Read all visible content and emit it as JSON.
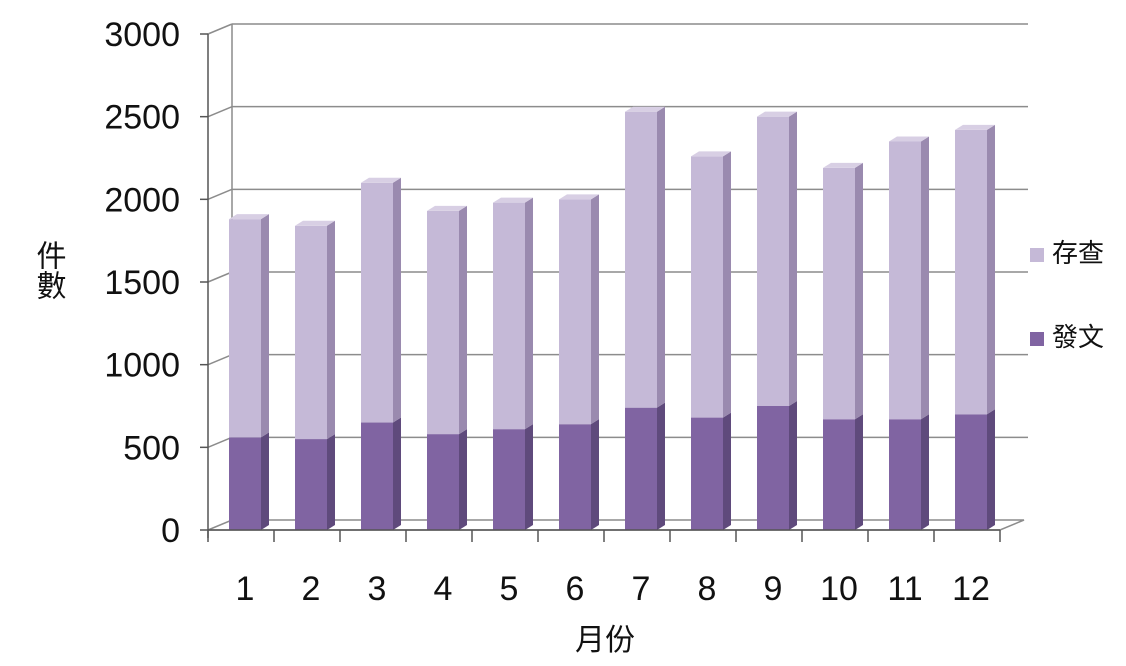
{
  "chart_data": {
    "type": "bar",
    "stacked": true,
    "title": "",
    "xlabel": "月份",
    "ylabel": "件數",
    "categories": [
      "1",
      "2",
      "3",
      "4",
      "5",
      "6",
      "7",
      "8",
      "9",
      "10",
      "11",
      "12"
    ],
    "series": [
      {
        "name": "發文",
        "values": [
          560,
          550,
          650,
          580,
          610,
          640,
          740,
          680,
          750,
          670,
          670,
          700
        ]
      },
      {
        "name": "存查",
        "values": [
          1320,
          1290,
          1450,
          1350,
          1370,
          1360,
          1790,
          1580,
          1750,
          1520,
          1680,
          1720
        ]
      }
    ],
    "ylim": [
      0,
      3000
    ],
    "yticks": [
      "0",
      "500",
      "1000",
      "1500",
      "2000",
      "2500",
      "3000"
    ],
    "grid": true,
    "legend": "right",
    "colors": {
      "發文": "#8064a2",
      "存查": "#c5b9d7"
    }
  }
}
